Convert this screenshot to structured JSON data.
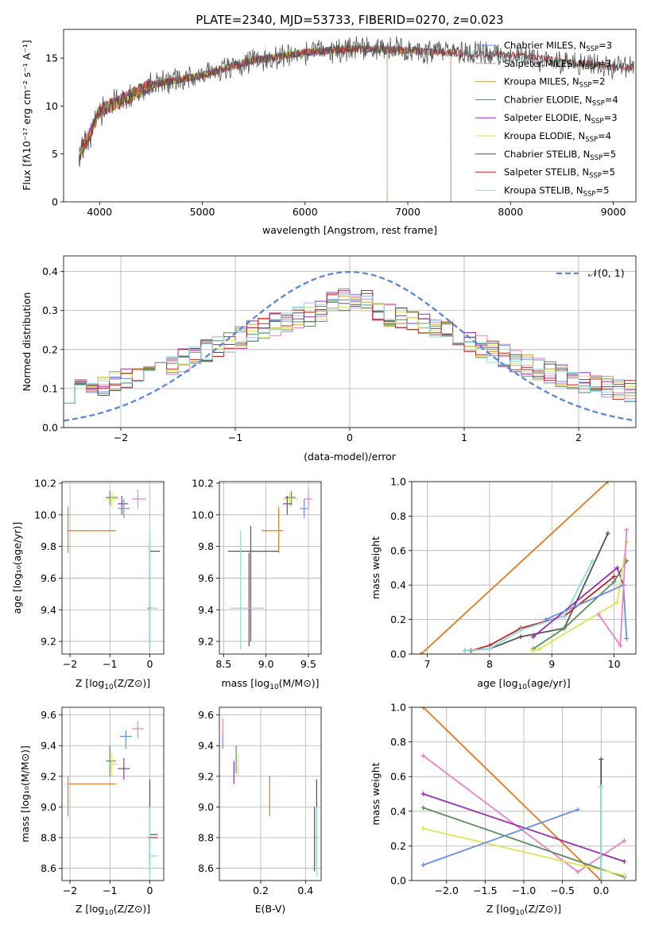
{
  "title": "PLATE=2340, MJD=53733, FIBERID=0270, z=0.023",
  "colors": {
    "Chabrier MILES": "#6a8fe0",
    "Salpeter MILES": "#e884c4",
    "Kroupa MILES": "#c9a23a",
    "Chabrier ELODIE": "#5e8c62",
    "Salpeter ELODIE": "#9a2fb0",
    "Kroupa ELODIE": "#dbe55a",
    "Chabrier STELIB": "#555555",
    "Salpeter STELIB": "#c0282a",
    "Kroupa STELIB": "#8fdada",
    "orange": "#e07b20",
    "gauss": "#5b87d8"
  },
  "chart_data": [
    {
      "id": "spectrum",
      "type": "line",
      "xlabel": "wavelength [Angstrom, rest frame]",
      "ylabel": "Flux [fλ10⁻¹⁷ erg cm⁻² s⁻¹ A⁻¹]",
      "xlim": [
        3650,
        9220
      ],
      "ylim": [
        0,
        18
      ],
      "xticks": [
        4000,
        5000,
        6000,
        7000,
        8000,
        9000
      ],
      "yticks": [
        0,
        5,
        10,
        15
      ],
      "grid": false,
      "legend_position": "top-right",
      "series": [
        {
          "name": "Chabrier MILES, N_SSP=3",
          "label_main": "Chabrier MILES, N",
          "label_sub": "SSP",
          "label_tail": "=3",
          "end": 7420
        },
        {
          "name": "Salpeter MILES, N_SSP=3",
          "label_main": "Salpeter MILES, N",
          "label_sub": "SSP",
          "label_tail": "=3",
          "end": 7420
        },
        {
          "name": "Kroupa MILES, N_SSP=2",
          "label_main": "Kroupa MILES, N",
          "label_sub": "SSP",
          "label_tail": "=2",
          "end": 7420
        },
        {
          "name": "Chabrier ELODIE, N_SSP=4",
          "label_main": "Chabrier ELODIE, N",
          "label_sub": "SSP",
          "label_tail": "=4",
          "end": 6800
        },
        {
          "name": "Salpeter ELODIE, N_SSP=3",
          "label_main": "Salpeter ELODIE, N",
          "label_sub": "SSP",
          "label_tail": "=3",
          "end": 6800
        },
        {
          "name": "Kroupa ELODIE, N_SSP=4",
          "label_main": "Kroupa ELODIE, N",
          "label_sub": "SSP",
          "label_tail": "=4",
          "end": 6800
        },
        {
          "name": "Chabrier STELIB, N_SSP=5",
          "label_main": "Chabrier STELIB, N",
          "label_sub": "SSP",
          "label_tail": "=5",
          "end": 9200
        },
        {
          "name": "Salpeter STELIB, N_SSP=5",
          "label_main": "Salpeter STELIB, N",
          "label_sub": "SSP",
          "label_tail": "=5",
          "end": 9200
        },
        {
          "name": "Kroupa STELIB, N_SSP=5",
          "label_main": "Kroupa STELIB, N",
          "label_sub": "SSP",
          "label_tail": "=5",
          "end": 9200
        }
      ],
      "data_trend": [
        [
          3800,
          5
        ],
        [
          3900,
          7
        ],
        [
          4000,
          9.5
        ],
        [
          4200,
          10.5
        ],
        [
          4500,
          12.2
        ],
        [
          5000,
          13.2
        ],
        [
          5500,
          14.8
        ],
        [
          6000,
          15.6
        ],
        [
          6500,
          16
        ],
        [
          7000,
          15.8
        ],
        [
          7500,
          15.5
        ],
        [
          8000,
          15.3
        ],
        [
          8500,
          14.7
        ],
        [
          9000,
          14.1
        ],
        [
          9200,
          14
        ]
      ]
    },
    {
      "id": "residuals",
      "type": "histogram",
      "xlabel": "(data-model)/error",
      "ylabel": "Normed distribution",
      "xlim": [
        -2.5,
        2.5
      ],
      "ylim": [
        0,
        0.44
      ],
      "xticks": [
        -2,
        -1,
        0,
        1,
        2
      ],
      "yticks": [
        0.0,
        0.1,
        0.2,
        0.3,
        0.4
      ],
      "grid": true,
      "legend": "𝒩(0, 1)",
      "legend_position": "top-right",
      "bin_width": 0.1
    },
    {
      "id": "age-vs-Z",
      "type": "scatter",
      "xlabel_main": "Z [log",
      "xlabel_sub": "10",
      "xlabel_tail": "(Z/Z⊙)]",
      "ylabel": "age  [log₁₀(age/yr)]",
      "xlim": [
        -2.2,
        0.35
      ],
      "ylim": [
        9.12,
        10.21
      ],
      "xticks": [
        -2,
        -1,
        0
      ],
      "yticks": [
        9.2,
        9.4,
        9.6,
        9.8,
        10.0,
        10.2
      ],
      "grid": true,
      "points": [
        {
          "c": "orange",
          "x": -2.05,
          "y": 9.9,
          "ex": [
            -2.05,
            -0.85
          ],
          "ey": [
            9.76,
            10.05
          ]
        },
        {
          "c": "Chabrier ELODIE",
          "x": -1.0,
          "y": 10.11,
          "ex": [
            -1.1,
            -0.8
          ],
          "ey": [
            10.06,
            10.15
          ]
        },
        {
          "c": "Kroupa ELODIE",
          "x": -0.95,
          "y": 10.1,
          "ex": [
            -1.1,
            -0.75
          ],
          "ey": [
            10.05,
            10.14
          ]
        },
        {
          "c": "Salpeter ELODIE",
          "x": -0.7,
          "y": 10.07,
          "ex": [
            -0.8,
            -0.55
          ],
          "ey": [
            10.0,
            10.12
          ]
        },
        {
          "c": "Chabrier MILES",
          "x": -0.65,
          "y": 10.04,
          "ex": [
            -0.8,
            -0.5
          ],
          "ey": [
            9.98,
            10.1
          ]
        },
        {
          "c": "Salpeter MILES",
          "x": -0.3,
          "y": 10.1,
          "ex": [
            -0.45,
            -0.1
          ],
          "ey": [
            10.04,
            10.16
          ]
        },
        {
          "c": "Chabrier STELIB",
          "x": 0.0,
          "y": 9.77,
          "ex": [
            0.0,
            0.25
          ],
          "ey": [
            9.2,
            9.8
          ]
        },
        {
          "c": "Salpeter STELIB",
          "x": 0.0,
          "y": 9.41,
          "ex": [
            -0.05,
            0.05
          ],
          "ey": [
            9.15,
            9.85
          ]
        },
        {
          "c": "Kroupa STELIB",
          "x": 0.0,
          "y": 9.41,
          "ex": [
            -0.02,
            0.2
          ],
          "ey": [
            9.15,
            9.9
          ]
        }
      ]
    },
    {
      "id": "age-vs-mass",
      "type": "scatter",
      "xlabel_main": "mass [log",
      "xlabel_sub": "10",
      "xlabel_tail": "(M/M⊙)]",
      "xlim": [
        8.45,
        9.65
      ],
      "ylim": [
        9.12,
        10.21
      ],
      "xticks": [
        8.5,
        9.0,
        9.5
      ],
      "yticks": [
        9.2,
        9.4,
        9.6,
        9.8,
        10.0,
        10.2
      ],
      "grid": true,
      "points": [
        {
          "c": "orange",
          "x": 9.15,
          "y": 9.9,
          "ex": [
            8.95,
            9.2
          ],
          "ey": [
            9.76,
            10.05
          ]
        },
        {
          "c": "Chabrier ELODIE",
          "x": 9.3,
          "y": 10.11,
          "ex": [
            9.22,
            9.35
          ],
          "ey": [
            10.06,
            10.15
          ]
        },
        {
          "c": "Kroupa ELODIE",
          "x": 9.28,
          "y": 10.1,
          "ex": [
            9.2,
            9.38
          ],
          "ey": [
            10.05,
            10.14
          ]
        },
        {
          "c": "Salpeter ELODIE",
          "x": 9.25,
          "y": 10.07,
          "ex": [
            9.2,
            9.3
          ],
          "ey": [
            10.0,
            10.12
          ]
        },
        {
          "c": "Chabrier MILES",
          "x": 9.45,
          "y": 10.04,
          "ex": [
            9.4,
            9.5
          ],
          "ey": [
            9.98,
            10.1
          ]
        },
        {
          "c": "Salpeter MILES",
          "x": 9.5,
          "y": 10.1,
          "ex": [
            9.45,
            9.55
          ],
          "ey": [
            10.04,
            10.16
          ]
        },
        {
          "c": "Chabrier STELIB",
          "x": 8.82,
          "y": 9.77,
          "ex": [
            8.55,
            9.15
          ],
          "ey": [
            9.2,
            9.93
          ]
        },
        {
          "c": "Salpeter STELIB",
          "x": 8.8,
          "y": 9.41,
          "ex": [
            8.78,
            8.82
          ],
          "ey": [
            9.17,
            9.76
          ]
        },
        {
          "c": "Kroupa STELIB",
          "x": 8.7,
          "y": 9.41,
          "ex": [
            8.58,
            8.98
          ],
          "ey": [
            9.15,
            9.9
          ]
        }
      ]
    },
    {
      "id": "mass-weight-vs-age",
      "type": "line",
      "xlabel_main": "age  [log",
      "xlabel_sub": "10",
      "xlabel_tail": "(age/yr)]",
      "ylabel": "mass weight",
      "xlim": [
        6.75,
        10.35
      ],
      "ylim": [
        0,
        1
      ],
      "xticks": [
        7,
        8,
        9,
        10
      ],
      "yticks": [
        0.0,
        0.2,
        0.4,
        0.6,
        0.8,
        1.0
      ],
      "grid": true,
      "series": [
        {
          "c": "orange",
          "x": [
            6.9,
            9.9
          ],
          "y": [
            0.0,
            1.0
          ]
        },
        {
          "c": "Chabrier STELIB",
          "x": [
            7.6,
            8.0,
            8.5,
            9.2,
            9.9
          ],
          "y": [
            0.02,
            0.03,
            0.1,
            0.15,
            0.7
          ]
        },
        {
          "c": "Salpeter STELIB",
          "x": [
            7.7,
            8.0,
            8.5,
            9.2,
            10.0
          ],
          "y": [
            0.02,
            0.05,
            0.15,
            0.22,
            0.45
          ]
        },
        {
          "c": "Kroupa STELIB",
          "x": [
            7.6,
            8.0,
            8.5,
            9.2,
            9.65
          ],
          "y": [
            0.02,
            0.03,
            0.14,
            0.22,
            0.54
          ]
        },
        {
          "c": "Chabrier ELODIE",
          "x": [
            8.7,
            9.2,
            10.0,
            10.2
          ],
          "y": [
            0.03,
            0.15,
            0.42,
            0.54
          ]
        },
        {
          "c": "Salpeter ELODIE",
          "x": [
            8.7,
            10.05,
            10.15
          ],
          "y": [
            0.1,
            0.5,
            0.4
          ]
        },
        {
          "c": "Kroupa ELODIE",
          "x": [
            8.7,
            8.8,
            10.05,
            10.2
          ],
          "y": [
            0.02,
            0.03,
            0.3,
            0.65
          ]
        },
        {
          "c": "Chabrier MILES",
          "x": [
            8.9,
            10.15,
            10.2
          ],
          "y": [
            0.2,
            0.4,
            0.09
          ]
        },
        {
          "c": "Salpeter MILES",
          "x": [
            9.75,
            10.1,
            10.2
          ],
          "y": [
            0.23,
            0.05,
            0.72
          ]
        }
      ]
    },
    {
      "id": "mass-vs-Z",
      "type": "scatter",
      "xlabel_main": "Z [log",
      "xlabel_sub": "10",
      "xlabel_tail": "(Z/Z⊙)]",
      "ylabel": "mass [log₁₀(M/M⊙)]",
      "xlim": [
        -2.2,
        0.35
      ],
      "ylim": [
        8.52,
        9.65
      ],
      "xticks": [
        -2,
        -1,
        0
      ],
      "yticks": [
        8.6,
        8.8,
        9.0,
        9.2,
        9.4,
        9.6
      ],
      "grid": true,
      "points": [
        {
          "c": "orange",
          "x": -2.05,
          "y": 9.15,
          "ex": [
            -2.05,
            -0.85
          ],
          "ey": [
            8.94,
            9.2
          ]
        },
        {
          "c": "Chabrier ELODIE",
          "x": -1.0,
          "y": 9.3,
          "ex": [
            -1.1,
            -0.85
          ],
          "ey": [
            9.2,
            9.4
          ]
        },
        {
          "c": "Kroupa ELODIE",
          "x": -0.95,
          "y": 9.28,
          "ex": [
            -1.05,
            -0.8
          ],
          "ey": [
            9.2,
            9.35
          ]
        },
        {
          "c": "Salpeter ELODIE",
          "x": -0.65,
          "y": 9.25,
          "ex": [
            -0.8,
            -0.5
          ],
          "ey": [
            9.18,
            9.32
          ]
        },
        {
          "c": "Chabrier MILES",
          "x": -0.6,
          "y": 9.46,
          "ex": [
            -0.75,
            -0.45
          ],
          "ey": [
            9.38,
            9.5
          ]
        },
        {
          "c": "Salpeter MILES",
          "x": -0.3,
          "y": 9.51,
          "ex": [
            -0.45,
            -0.15
          ],
          "ey": [
            9.45,
            9.56
          ]
        },
        {
          "c": "Chabrier STELIB",
          "x": 0.0,
          "y": 8.82,
          "ex": [
            0.0,
            0.2
          ],
          "ey": [
            8.62,
            9.18
          ]
        },
        {
          "c": "Salpeter STELIB",
          "x": 0.0,
          "y": 8.8,
          "ex": [
            -0.05,
            0.2
          ],
          "ey": [
            8.58,
            8.8
          ]
        },
        {
          "c": "Kroupa STELIB",
          "x": 0.0,
          "y": 8.68,
          "ex": [
            0.0,
            0.2
          ],
          "ey": [
            8.55,
            9.0
          ]
        }
      ]
    },
    {
      "id": "mass-vs-EBV",
      "type": "scatter",
      "xlabel": "E(B-V)",
      "xlim": [
        0.015,
        0.47
      ],
      "ylim": [
        8.52,
        9.65
      ],
      "xticks": [
        0.2,
        0.4
      ],
      "yticks": [
        8.6,
        8.8,
        9.0,
        9.2,
        9.4,
        9.6
      ],
      "grid": true,
      "points": [
        {
          "c": "Chabrier MILES",
          "x": 0.03,
          "y": 9.46,
          "ey": [
            9.38,
            9.5
          ]
        },
        {
          "c": "Salpeter MILES",
          "x": 0.03,
          "y": 9.51,
          "ey": [
            9.45,
            9.58
          ]
        },
        {
          "c": "Salpeter ELODIE",
          "x": 0.08,
          "y": 9.25,
          "ey": [
            9.15,
            9.3
          ]
        },
        {
          "c": "Chabrier ELODIE",
          "x": 0.09,
          "y": 9.3,
          "ey": [
            9.22,
            9.4
          ]
        },
        {
          "c": "Kroupa ELODIE",
          "x": 0.1,
          "y": 9.28,
          "ey": [
            9.2,
            9.35
          ]
        },
        {
          "c": "orange",
          "x": 0.24,
          "y": 9.15,
          "ey": [
            8.94,
            9.2
          ]
        },
        {
          "c": "Chabrier STELIB",
          "x": 0.45,
          "y": 8.82,
          "ey": [
            8.62,
            9.18
          ]
        },
        {
          "c": "Salpeter STELIB",
          "x": 0.44,
          "y": 8.8,
          "ey": [
            8.58,
            9.0
          ]
        },
        {
          "c": "Kroupa STELIB",
          "x": 0.45,
          "y": 8.68,
          "ey": [
            8.55,
            9.0
          ]
        }
      ]
    },
    {
      "id": "mass-weight-vs-Z",
      "type": "line",
      "xlabel_main": "Z [log",
      "xlabel_sub": "10",
      "xlabel_tail": "(Z/Z⊙)]",
      "ylabel": "mass weight",
      "xlim": [
        -2.45,
        0.45
      ],
      "ylim": [
        0,
        1
      ],
      "xticks": [
        -2.0,
        -1.5,
        -1.0,
        -0.5,
        0.0
      ],
      "yticks": [
        0.0,
        0.2,
        0.4,
        0.6,
        0.8,
        1.0
      ],
      "grid": true,
      "series": [
        {
          "c": "orange",
          "x": [
            -2.3,
            0.0
          ],
          "y": [
            1.0,
            0.0
          ]
        },
        {
          "c": "Salpeter MILES",
          "x": [
            -2.3,
            -0.3,
            0.3
          ],
          "y": [
            0.72,
            0.05,
            0.23
          ]
        },
        {
          "c": "Salpeter ELODIE",
          "x": [
            -2.3,
            0.3
          ],
          "y": [
            0.5,
            0.11
          ]
        },
        {
          "c": "Chabrier ELODIE",
          "x": [
            -2.3,
            0.3
          ],
          "y": [
            0.42,
            0.02
          ]
        },
        {
          "c": "Kroupa ELODIE",
          "x": [
            -2.3,
            0.3
          ],
          "y": [
            0.3,
            0.03
          ]
        },
        {
          "c": "Chabrier MILES",
          "x": [
            -2.3,
            -0.3
          ],
          "y": [
            0.09,
            0.41
          ]
        },
        {
          "c": "Chabrier STELIB",
          "x": [
            0.0,
            0.0
          ],
          "y": [
            0.0,
            0.7
          ]
        },
        {
          "c": "Kroupa STELIB",
          "x": [
            0.0,
            0.0
          ],
          "y": [
            0.0,
            0.54
          ]
        }
      ]
    }
  ]
}
